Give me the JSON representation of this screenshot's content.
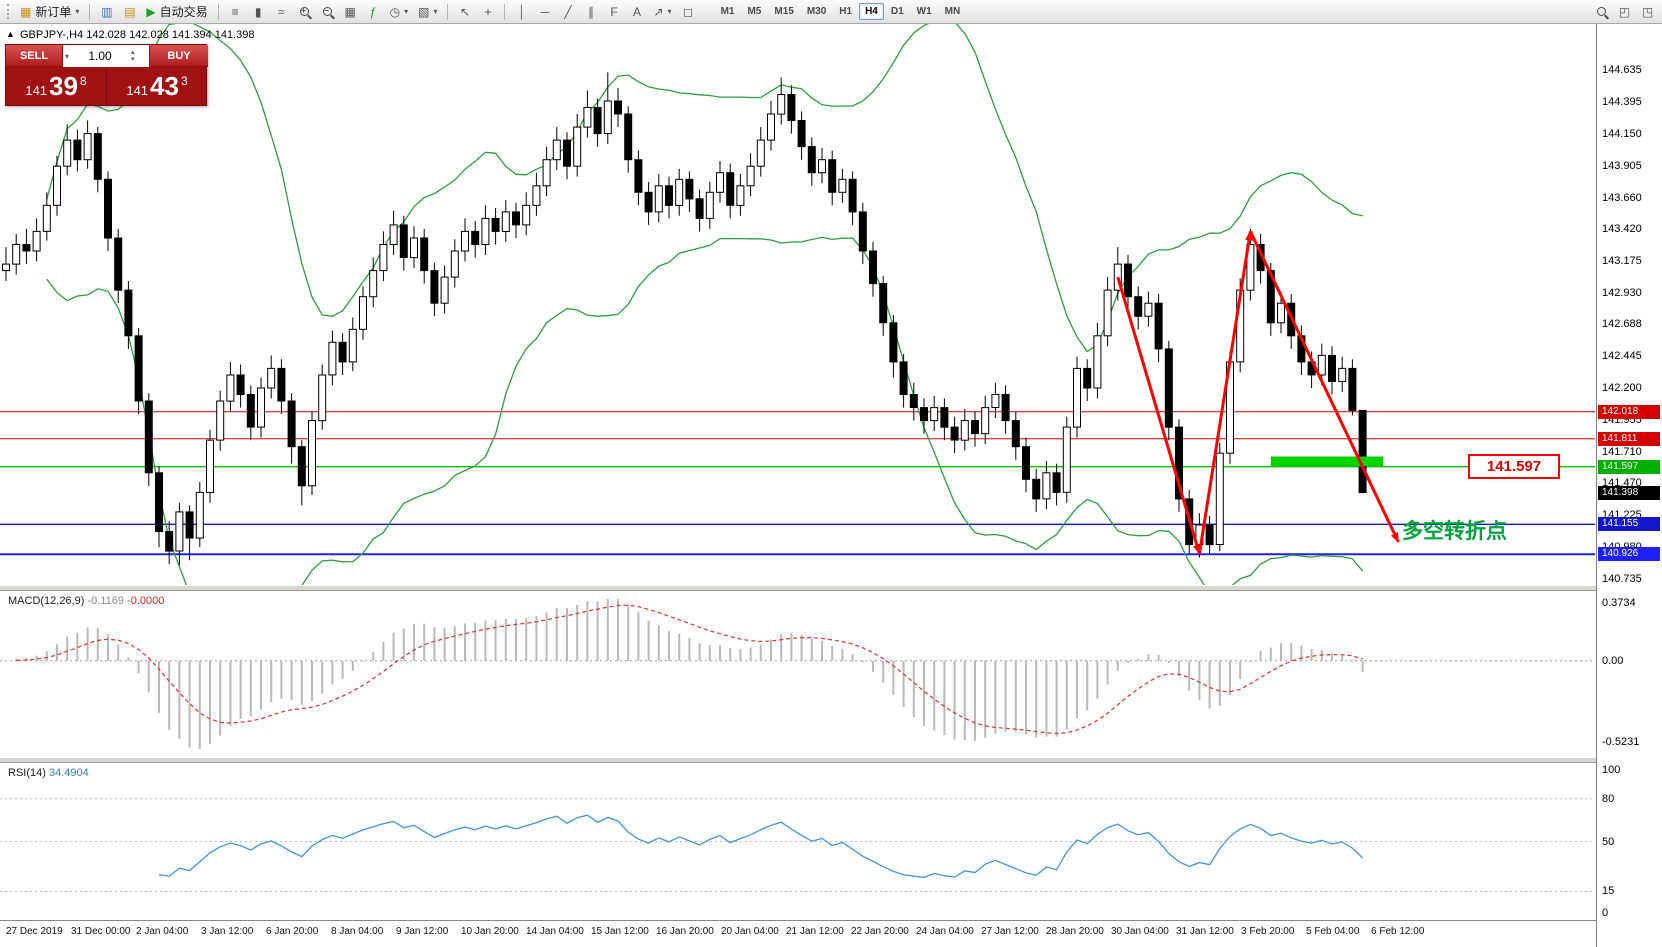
{
  "toolbar": {
    "new_order": "新订单",
    "autotrading": "自动交易",
    "timeframes": [
      "M1",
      "M5",
      "M15",
      "M30",
      "H1",
      "H4",
      "D1",
      "W1",
      "MN"
    ],
    "active_timeframe": "H4",
    "icons": {
      "caret": "▾",
      "new_order": "▦",
      "charts": "▥",
      "profiles": "▤",
      "autotrading": "▶",
      "bars": "≡",
      "candles": "▮",
      "line": "≈",
      "zoom_in": "+",
      "zoom_out": "−",
      "tile_windows": "▦",
      "indicators": "ƒ",
      "periods": "◷",
      "templates": "▧",
      "cursor": "↖",
      "crosshair": "+",
      "vline": "│",
      "hline": "─",
      "trendline": "╱",
      "channel": "∥",
      "fibonacci": "F",
      "text": "A",
      "arrows": "↗",
      "shapes": "◻",
      "window_cascade": "◰",
      "window_tile": "◳"
    }
  },
  "chart_header": {
    "collapse_arrow": "▲",
    "symbol_period": "GBPJPY-,H4",
    "ohlc": "142.028 142.028 141.394 141.398"
  },
  "trade_widget": {
    "sell_label": "SELL",
    "buy_label": "BUY",
    "volume": "1.00",
    "caret": "▾",
    "spin_up": "▴",
    "spin_down": "▾",
    "sell_price": {
      "base": "141",
      "pips": "39",
      "frac": "8"
    },
    "buy_price": {
      "base": "141",
      "pips": "43",
      "frac": "3"
    }
  },
  "annotations": {
    "turning_point": "多空转折点",
    "turning_point_color": "#00a33c",
    "turning_point_anchor_price": 141.12,
    "callout_price": "141.597",
    "callout_color": "#e00000"
  },
  "price_scale": {
    "ticks": [
      "144.635",
      "144.395",
      "144.150",
      "143.905",
      "143.660",
      "143.420",
      "143.175",
      "142.930",
      "142.688",
      "142.445",
      "142.200",
      "141.955",
      "141.710",
      "141.470",
      "141.225",
      "140.980",
      "140.735"
    ],
    "tags": [
      {
        "text": "142.018",
        "color": "#d40000"
      },
      {
        "text": "141.811",
        "color": "#d40000"
      },
      {
        "text": "141.597",
        "color": "#00b000"
      },
      {
        "text": "141.398",
        "color": "#000000"
      },
      {
        "text": "141.155",
        "color": "#1414c8"
      },
      {
        "text": "140.926",
        "color": "#2020ff"
      }
    ]
  },
  "macd_panel": {
    "label": "MACD(12,26,9)",
    "value_main": "-0.1169",
    "value_signal": "-0.0000",
    "scale": [
      "0.3734",
      "0.00",
      "-0.5231"
    ]
  },
  "rsi_panel": {
    "label": "RSI(14)",
    "value": "34.4904",
    "scale": [
      "100",
      "80",
      "50",
      "15",
      "0"
    ]
  },
  "time_axis": {
    "labels": [
      "27 Dec 2019",
      "31 Dec 00:00",
      "2 Jan 04:00",
      "3 Jan 12:00",
      "6 Jan 20:00",
      "8 Jan 04:00",
      "9 Jan 12:00",
      "10 Jan 20:00",
      "14 Jan 04:00",
      "15 Jan 12:00",
      "16 Jan 20:00",
      "20 Jan 04:00",
      "21 Jan 12:00",
      "22 Jan 20:00",
      "24 Jan 04:00",
      "27 Jan 12:00",
      "28 Jan 20:00",
      "30 Jan 04:00",
      "31 Jan 12:00",
      "3 Feb 20:00",
      "5 Feb 04:00",
      "6 Feb 12:00"
    ]
  },
  "chart_data": {
    "type": "candlestick",
    "symbol": "GBPJPY",
    "period": "H4",
    "ylim": [
      140.69,
      144.99
    ],
    "colors": {
      "bollinger": "#2e9e3f",
      "candle_up": "#ffffff",
      "candle_down": "#000000",
      "macd_hist": "#b9b9b9",
      "macd_signal": "#e03030",
      "rsi": "#4394d8",
      "arrow": "#ff0000",
      "highlight_rect": "#00d300"
    },
    "indicators": {
      "bollinger": {
        "period": 20,
        "deviation": 2
      },
      "macd": {
        "fast": 12,
        "slow": 26,
        "signal": 9
      },
      "rsi": {
        "period": 14
      }
    },
    "macd_range": {
      "min": -0.62,
      "max": 0.45
    },
    "rsi_range": {
      "min": -5,
      "max": 105
    },
    "rsi_levels": [
      80,
      50,
      15
    ],
    "hlines": [
      {
        "price": 142.018,
        "color": "#d40000",
        "width": 1
      },
      {
        "price": 141.811,
        "color": "#d40000",
        "width": 1
      },
      {
        "price": 141.597,
        "color": "#00c000",
        "width": 1.4
      },
      {
        "price": 141.155,
        "color": "#1414c8",
        "width": 1.4
      },
      {
        "price": 140.926,
        "color": "#2020ff",
        "width": 2
      }
    ],
    "drawings": {
      "arrows": [
        {
          "from": [
            109,
            143.05
          ],
          "to": [
            117,
            140.93
          ]
        },
        {
          "from": [
            117,
            140.93
          ],
          "to": [
            122,
            143.4
          ]
        },
        {
          "from": [
            122,
            143.4
          ],
          "to": [
            136.5,
            141.02
          ]
        }
      ],
      "rect": {
        "i1": 124,
        "i2": 135,
        "p_top": 141.675,
        "p_bottom": 141.6
      }
    },
    "candles": [
      [
        143.1,
        143.28,
        143.02,
        143.15
      ],
      [
        143.15,
        143.38,
        143.07,
        143.3
      ],
      [
        143.3,
        143.42,
        143.15,
        143.25
      ],
      [
        143.25,
        143.5,
        143.17,
        143.4
      ],
      [
        143.4,
        143.7,
        143.33,
        143.6
      ],
      [
        143.6,
        143.98,
        143.52,
        143.9
      ],
      [
        143.9,
        144.22,
        143.83,
        144.1
      ],
      [
        144.1,
        144.18,
        143.86,
        143.95
      ],
      [
        143.95,
        144.25,
        143.88,
        144.15
      ],
      [
        144.15,
        144.2,
        143.7,
        143.8
      ],
      [
        143.8,
        143.86,
        143.25,
        143.35
      ],
      [
        143.35,
        143.42,
        142.85,
        142.95
      ],
      [
        142.95,
        143.02,
        142.5,
        142.6
      ],
      [
        142.6,
        142.66,
        142.0,
        142.1
      ],
      [
        142.1,
        142.16,
        141.45,
        141.55
      ],
      [
        141.55,
        141.6,
        140.98,
        141.1
      ],
      [
        141.1,
        141.18,
        140.85,
        140.95
      ],
      [
        140.95,
        141.32,
        140.84,
        141.25
      ],
      [
        141.25,
        141.3,
        140.88,
        141.05
      ],
      [
        141.05,
        141.48,
        140.98,
        141.4
      ],
      [
        141.4,
        141.88,
        141.32,
        141.8
      ],
      [
        141.8,
        142.18,
        141.72,
        142.1
      ],
      [
        142.1,
        142.4,
        142.02,
        142.3
      ],
      [
        142.3,
        142.38,
        142.05,
        142.15
      ],
      [
        142.15,
        142.22,
        141.8,
        141.9
      ],
      [
        141.9,
        142.28,
        141.82,
        142.2
      ],
      [
        142.2,
        142.45,
        142.12,
        142.35
      ],
      [
        142.35,
        142.42,
        142.0,
        142.1
      ],
      [
        142.1,
        142.16,
        141.62,
        141.75
      ],
      [
        141.75,
        141.8,
        141.3,
        141.45
      ],
      [
        141.45,
        142.02,
        141.38,
        141.95
      ],
      [
        141.95,
        142.38,
        141.88,
        142.3
      ],
      [
        142.3,
        142.64,
        142.22,
        142.55
      ],
      [
        142.55,
        142.62,
        142.3,
        142.4
      ],
      [
        142.4,
        142.74,
        142.33,
        142.65
      ],
      [
        142.65,
        142.98,
        142.57,
        142.9
      ],
      [
        142.9,
        143.2,
        142.82,
        143.1
      ],
      [
        143.1,
        143.4,
        143.02,
        143.3
      ],
      [
        143.3,
        143.56,
        143.22,
        143.45
      ],
      [
        143.45,
        143.52,
        143.1,
        143.2
      ],
      [
        143.2,
        143.44,
        143.12,
        143.35
      ],
      [
        143.35,
        143.42,
        143.0,
        143.1
      ],
      [
        143.1,
        143.16,
        142.75,
        142.85
      ],
      [
        142.85,
        143.14,
        142.77,
        143.05
      ],
      [
        143.05,
        143.34,
        142.97,
        143.25
      ],
      [
        143.25,
        143.5,
        143.17,
        143.4
      ],
      [
        143.4,
        143.48,
        143.2,
        143.3
      ],
      [
        143.3,
        143.6,
        143.22,
        143.5
      ],
      [
        143.5,
        143.58,
        143.3,
        143.4
      ],
      [
        143.4,
        143.64,
        143.32,
        143.55
      ],
      [
        143.55,
        143.62,
        143.35,
        143.45
      ],
      [
        143.45,
        143.7,
        143.37,
        143.6
      ],
      [
        143.6,
        143.85,
        143.52,
        143.75
      ],
      [
        143.75,
        144.05,
        143.67,
        143.95
      ],
      [
        143.95,
        144.2,
        143.87,
        144.1
      ],
      [
        144.1,
        144.16,
        143.8,
        143.9
      ],
      [
        143.9,
        144.3,
        143.82,
        144.2
      ],
      [
        144.2,
        144.48,
        144.12,
        144.35
      ],
      [
        144.35,
        144.42,
        144.05,
        144.15
      ],
      [
        144.15,
        144.62,
        144.07,
        144.4
      ],
      [
        144.4,
        144.5,
        144.2,
        144.3
      ],
      [
        144.3,
        144.36,
        143.85,
        143.95
      ],
      [
        143.95,
        144.02,
        143.6,
        143.7
      ],
      [
        143.7,
        143.78,
        143.45,
        143.55
      ],
      [
        143.55,
        143.84,
        143.47,
        143.75
      ],
      [
        143.75,
        143.82,
        143.5,
        143.6
      ],
      [
        143.6,
        143.88,
        143.52,
        143.8
      ],
      [
        143.8,
        143.86,
        143.55,
        143.65
      ],
      [
        143.65,
        143.72,
        143.4,
        143.5
      ],
      [
        143.5,
        143.78,
        143.42,
        143.7
      ],
      [
        143.7,
        143.94,
        143.62,
        143.85
      ],
      [
        143.85,
        143.92,
        143.5,
        143.6
      ],
      [
        143.6,
        143.84,
        143.52,
        143.75
      ],
      [
        143.75,
        144.0,
        143.67,
        143.9
      ],
      [
        143.9,
        144.2,
        143.82,
        144.1
      ],
      [
        144.1,
        144.4,
        144.02,
        144.3
      ],
      [
        144.3,
        144.58,
        144.22,
        144.45
      ],
      [
        144.45,
        144.52,
        144.15,
        144.25
      ],
      [
        144.25,
        144.32,
        143.95,
        144.05
      ],
      [
        144.05,
        144.12,
        143.75,
        143.85
      ],
      [
        143.85,
        144.04,
        143.77,
        143.95
      ],
      [
        143.95,
        144.02,
        143.6,
        143.7
      ],
      [
        143.7,
        143.88,
        143.62,
        143.8
      ],
      [
        143.8,
        143.86,
        143.45,
        143.55
      ],
      [
        143.55,
        143.62,
        143.15,
        143.25
      ],
      [
        143.25,
        143.32,
        142.9,
        143.0
      ],
      [
        143.0,
        143.06,
        142.6,
        142.7
      ],
      [
        142.7,
        142.76,
        142.28,
        142.4
      ],
      [
        142.4,
        142.46,
        142.05,
        142.15
      ],
      [
        142.15,
        142.24,
        141.95,
        142.05
      ],
      [
        142.05,
        142.12,
        141.85,
        141.95
      ],
      [
        141.95,
        142.14,
        141.87,
        142.05
      ],
      [
        142.05,
        142.12,
        141.8,
        141.9
      ],
      [
        141.9,
        141.98,
        141.7,
        141.8
      ],
      [
        141.8,
        142.04,
        141.72,
        141.95
      ],
      [
        141.95,
        142.02,
        141.75,
        141.85
      ],
      [
        141.85,
        142.14,
        141.77,
        142.05
      ],
      [
        142.05,
        142.24,
        141.97,
        142.15
      ],
      [
        142.15,
        142.22,
        141.85,
        141.95
      ],
      [
        141.95,
        142.02,
        141.65,
        141.75
      ],
      [
        141.75,
        141.82,
        141.4,
        141.5
      ],
      [
        141.5,
        141.58,
        141.25,
        141.35
      ],
      [
        141.35,
        141.64,
        141.27,
        141.55
      ],
      [
        141.55,
        141.62,
        141.3,
        141.4
      ],
      [
        141.4,
        141.98,
        141.32,
        141.9
      ],
      [
        141.9,
        142.44,
        141.82,
        142.35
      ],
      [
        142.35,
        142.42,
        142.1,
        142.2
      ],
      [
        142.2,
        142.7,
        142.12,
        142.6
      ],
      [
        142.6,
        143.05,
        142.52,
        142.95
      ],
      [
        142.95,
        143.28,
        142.87,
        143.15
      ],
      [
        143.15,
        143.22,
        142.8,
        142.9
      ],
      [
        142.9,
        142.98,
        142.65,
        142.75
      ],
      [
        142.75,
        142.94,
        142.67,
        142.85
      ],
      [
        142.85,
        142.92,
        142.4,
        142.5
      ],
      [
        142.5,
        142.56,
        141.8,
        141.9
      ],
      [
        141.9,
        141.96,
        141.25,
        141.35
      ],
      [
        141.35,
        141.42,
        140.93,
        141.0
      ],
      [
        141.0,
        141.24,
        140.9,
        141.15
      ],
      [
        141.15,
        141.22,
        140.93,
        141.0
      ],
      [
        141.0,
        141.78,
        140.95,
        141.7
      ],
      [
        141.7,
        142.48,
        141.62,
        142.4
      ],
      [
        142.4,
        143.04,
        142.32,
        142.95
      ],
      [
        142.95,
        143.42,
        142.87,
        143.3
      ],
      [
        143.3,
        143.38,
        143.0,
        143.1
      ],
      [
        143.1,
        143.16,
        142.6,
        142.7
      ],
      [
        142.7,
        142.94,
        142.62,
        142.85
      ],
      [
        142.85,
        142.92,
        142.5,
        142.6
      ],
      [
        142.6,
        142.68,
        142.3,
        142.4
      ],
      [
        142.4,
        142.48,
        142.2,
        142.3
      ],
      [
        142.3,
        142.54,
        142.22,
        142.45
      ],
      [
        142.45,
        142.52,
        142.15,
        142.25
      ],
      [
        142.25,
        142.44,
        142.17,
        142.35
      ],
      [
        142.35,
        142.42,
        141.99,
        142.028
      ],
      [
        142.028,
        142.028,
        141.394,
        141.398
      ]
    ]
  }
}
